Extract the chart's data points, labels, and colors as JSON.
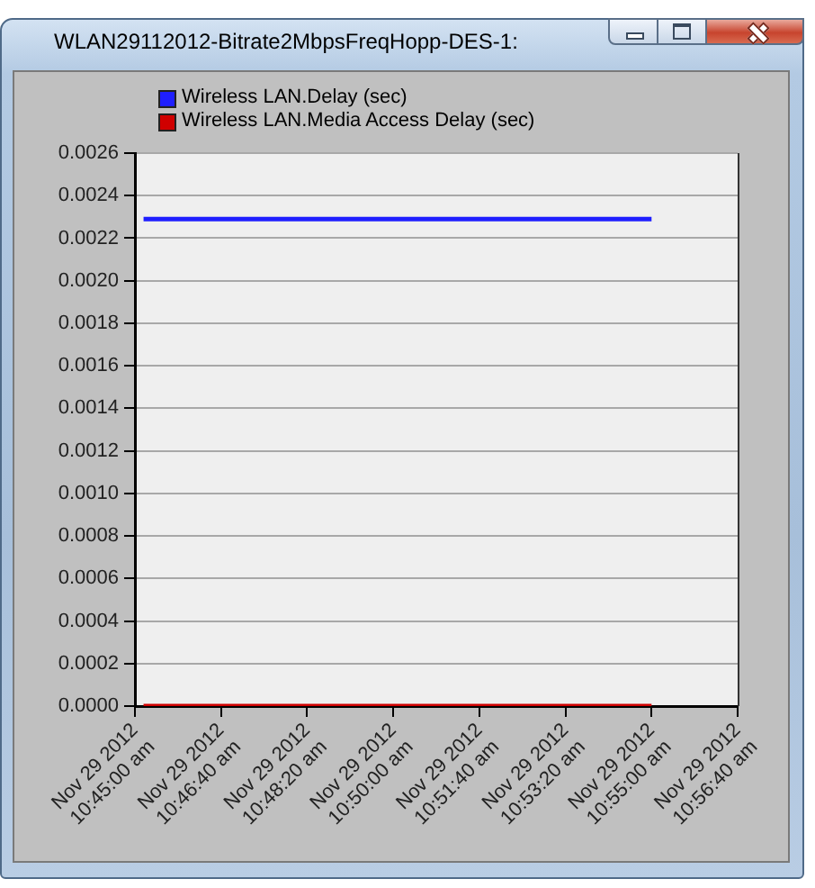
{
  "chart_data": {
    "type": "line",
    "title": "WLAN29112012-Bitrate2MbpsFreqHopp-DES-1:",
    "series": [
      {
        "name": "Wireless LAN.Delay (sec)",
        "color": "#1f1fff",
        "x": [
          "2012-11-29T10:45:10",
          "2012-11-29T10:55:00"
        ],
        "values": [
          0.00229,
          0.00229
        ]
      },
      {
        "name": "Wireless LAN.Media Access Delay (sec)",
        "color": "#d00000",
        "x": [
          "2012-11-29T10:45:10",
          "2012-11-29T10:55:00"
        ],
        "values": [
          0,
          0
        ]
      }
    ],
    "xlim": [
      "2012-11-29T10:45:00",
      "2012-11-29T10:56:40"
    ],
    "xticks": [
      {
        "value": "2012-11-29T10:45:00",
        "label": "Nov 29 2012\n10:45:00 am"
      },
      {
        "value": "2012-11-29T10:46:40",
        "label": "Nov 29 2012\n10:46:40 am"
      },
      {
        "value": "2012-11-29T10:48:20",
        "label": "Nov 29 2012\n10:48:20 am"
      },
      {
        "value": "2012-11-29T10:50:00",
        "label": "Nov 29 2012\n10:50:00 am"
      },
      {
        "value": "2012-11-29T10:51:40",
        "label": "Nov 29 2012\n10:51:40 am"
      },
      {
        "value": "2012-11-29T10:53:20",
        "label": "Nov 29 2012\n10:53:20 am"
      },
      {
        "value": "2012-11-29T10:55:00",
        "label": "Nov 29 2012\n10:55:00 am"
      },
      {
        "value": "2012-11-29T10:56:40",
        "label": "Nov 29 2012\n10:56:40 am"
      }
    ],
    "ylim": [
      0,
      0.0026
    ],
    "yticks": [
      {
        "value": 0,
        "label": "0.0000"
      },
      {
        "value": 0.0002,
        "label": "0.0002"
      },
      {
        "value": 0.0004,
        "label": "0.0004"
      },
      {
        "value": 0.0006,
        "label": "0.0006"
      },
      {
        "value": 0.0008,
        "label": "0.0008"
      },
      {
        "value": 0.001,
        "label": "0.0010"
      },
      {
        "value": 0.0012,
        "label": "0.0012"
      },
      {
        "value": 0.0014,
        "label": "0.0014"
      },
      {
        "value": 0.0016,
        "label": "0.0016"
      },
      {
        "value": 0.0018,
        "label": "0.0018"
      },
      {
        "value": 0.002,
        "label": "0.0020"
      },
      {
        "value": 0.0022,
        "label": "0.0022"
      },
      {
        "value": 0.0024,
        "label": "0.0024"
      },
      {
        "value": 0.0026,
        "label": "0.0026"
      }
    ],
    "grid": "y",
    "legend": "top",
    "marker": "none"
  }
}
